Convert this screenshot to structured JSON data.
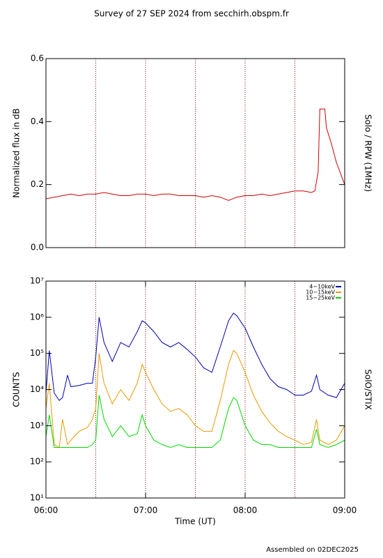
{
  "title": "Survey of 27 SEP 2024 from secchirh.obspm.fr",
  "footer": "Assembled on 02DEC2025",
  "chart_data": [
    {
      "type": "line",
      "ylabel": "Normalized flux in dB",
      "right_label": "Solo / RPW (1MHz)",
      "xlim": [
        "06:00",
        "09:00"
      ],
      "vlines": [
        "06:30",
        "07:00",
        "07:30",
        "08:00",
        "08:30"
      ],
      "ylim": [
        0,
        0.6
      ],
      "yticks": [
        {
          "value": 0,
          "label": "0.0"
        },
        {
          "value": 0.2,
          "label": "0.2"
        },
        {
          "value": 0.4,
          "label": "0.4"
        },
        {
          "value": 0.6,
          "label": "0.6"
        }
      ],
      "x": [
        "06:00",
        "06:05",
        "06:10",
        "06:15",
        "06:20",
        "06:25",
        "06:30",
        "06:35",
        "06:40",
        "06:45",
        "06:50",
        "06:55",
        "07:00",
        "07:05",
        "07:10",
        "07:15",
        "07:20",
        "07:25",
        "07:30",
        "07:35",
        "07:40",
        "07:45",
        "07:50",
        "07:55",
        "08:00",
        "08:05",
        "08:10",
        "08:15",
        "08:20",
        "08:25",
        "08:30",
        "08:35",
        "08:40",
        "08:42",
        "08:44",
        "08:45",
        "08:48",
        "08:49",
        "08:52",
        "08:55",
        "09:00"
      ],
      "series": [
        {
          "color": "#cc0000",
          "values": [
            0.155,
            0.16,
            0.165,
            0.17,
            0.165,
            0.17,
            0.17,
            0.175,
            0.17,
            0.165,
            0.165,
            0.17,
            0.17,
            0.165,
            0.17,
            0.17,
            0.165,
            0.165,
            0.165,
            0.16,
            0.165,
            0.16,
            0.15,
            0.16,
            0.165,
            0.165,
            0.17,
            0.165,
            0.17,
            0.175,
            0.18,
            0.18,
            0.175,
            0.18,
            0.24,
            0.44,
            0.44,
            0.38,
            0.33,
            0.27,
            0.2
          ]
        }
      ]
    },
    {
      "type": "line",
      "ylabel": "COUNTS",
      "right_label": "SolO/STIX",
      "xlabel": "Time (UT)",
      "xlim": [
        "06:00",
        "09:00"
      ],
      "xticks": [
        "06:00",
        "07:00",
        "08:00",
        "09:00"
      ],
      "vlines": [
        "06:30",
        "07:00",
        "07:30",
        "08:00",
        "08:30"
      ],
      "log": true,
      "ylim": [
        10,
        10000000
      ],
      "yticks": [
        {
          "value": 10,
          "label": "10¹"
        },
        {
          "value": 100,
          "label": "10²"
        },
        {
          "value": 1000,
          "label": "10³"
        },
        {
          "value": 10000,
          "label": "10⁴"
        },
        {
          "value": 100000,
          "label": "10⁵"
        },
        {
          "value": 1000000,
          "label": "10⁶"
        },
        {
          "value": 10000000,
          "label": "10⁷"
        }
      ],
      "legend": "upper right",
      "x": [
        "06:00",
        "06:02",
        "06:05",
        "06:08",
        "06:10",
        "06:13",
        "06:15",
        "06:20",
        "06:25",
        "06:28",
        "06:30",
        "06:32",
        "06:35",
        "06:40",
        "06:45",
        "06:50",
        "06:55",
        "06:58",
        "07:00",
        "07:05",
        "07:10",
        "07:15",
        "07:20",
        "07:25",
        "07:30",
        "07:35",
        "07:40",
        "07:45",
        "07:50",
        "07:53",
        "07:55",
        "08:00",
        "08:05",
        "08:10",
        "08:15",
        "08:20",
        "08:25",
        "08:30",
        "08:35",
        "08:40",
        "08:43",
        "08:45",
        "08:50",
        "08:55",
        "09:00"
      ],
      "series": [
        {
          "name": "4−10keV",
          "color": "#0000b0",
          "values": [
            8000,
            120000,
            8000,
            5000,
            6000,
            25000,
            12000,
            13000,
            15000,
            15000,
            80000,
            1000000,
            200000,
            60000,
            200000,
            150000,
            400000,
            800000,
            700000,
            400000,
            200000,
            150000,
            200000,
            130000,
            80000,
            40000,
            30000,
            150000,
            800000,
            1300000,
            1100000,
            500000,
            150000,
            50000,
            20000,
            12000,
            10000,
            7000,
            7000,
            9000,
            25000,
            10000,
            7000,
            6000,
            15000
          ]
        },
        {
          "name": "10−15keV",
          "color": "#e89a00",
          "values": [
            3000,
            15000,
            300,
            250,
            1500,
            300,
            400,
            700,
            900,
            1500,
            3000,
            100000,
            15000,
            4000,
            10000,
            5000,
            15000,
            50000,
            30000,
            10000,
            4000,
            2500,
            3000,
            2000,
            1000,
            700,
            700,
            5000,
            50000,
            120000,
            100000,
            30000,
            7000,
            2500,
            1200,
            700,
            500,
            400,
            300,
            350,
            1500,
            400,
            300,
            400,
            1000
          ]
        },
        {
          "name": "15−25keV",
          "color": "#00d800",
          "values": [
            500,
            2000,
            250,
            250,
            250,
            250,
            250,
            250,
            250,
            300,
            400,
            7000,
            1500,
            500,
            1000,
            500,
            600,
            2000,
            1000,
            400,
            300,
            250,
            300,
            250,
            250,
            250,
            250,
            400,
            3000,
            6000,
            5000,
            1000,
            400,
            300,
            300,
            250,
            250,
            250,
            250,
            250,
            800,
            300,
            250,
            300,
            400
          ]
        }
      ]
    }
  ]
}
